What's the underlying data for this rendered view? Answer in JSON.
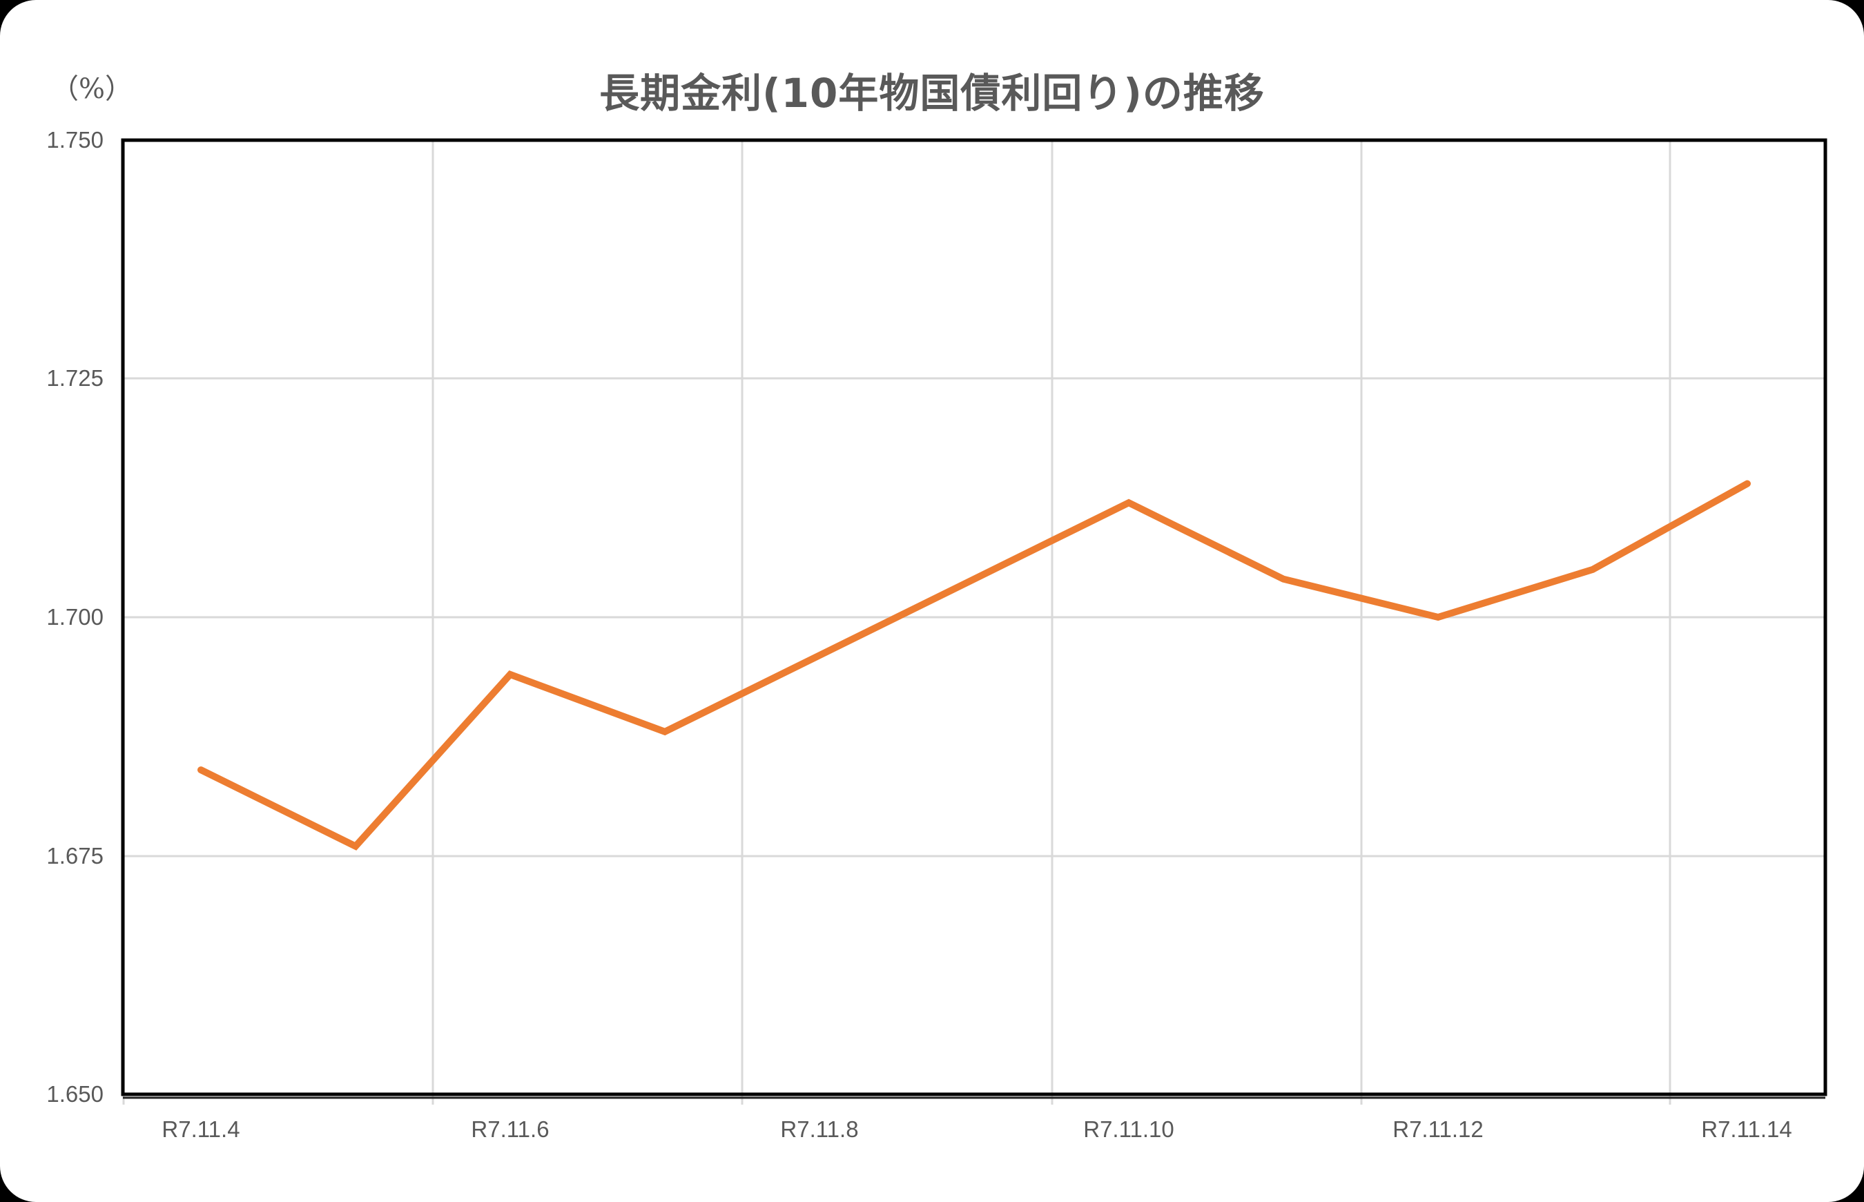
{
  "chart": {
    "title": "長期金利(10年物国債利回り)の推移",
    "unit_label": "（%）",
    "line_color": "#ED7D31",
    "y_ticks": [
      "1.750",
      "1.725",
      "1.700",
      "1.675",
      "1.650"
    ],
    "x_ticks": [
      "R7.11.4",
      "R7.11.6",
      "R7.11.8",
      "R7.11.10",
      "R7.11.12",
      "R7.11.14"
    ]
  },
  "chart_data": {
    "type": "line",
    "title": "長期金利(10年物国債利回り)の推移",
    "xlabel": "",
    "ylabel": "(%)",
    "ylim": [
      1.65,
      1.75
    ],
    "y_ticks": [
      1.65,
      1.675,
      1.7,
      1.725,
      1.75
    ],
    "x_tick_labels": [
      "R7.11.4",
      "R7.11.6",
      "R7.11.8",
      "R7.11.10",
      "R7.11.12",
      "R7.11.14"
    ],
    "grid": true,
    "legend": null,
    "x": [
      "R7.11.4",
      "R7.11.5",
      "R7.11.6",
      "R7.11.7",
      "R7.11.10",
      "R7.11.11",
      "R7.11.12",
      "R7.11.13",
      "R7.11.14"
    ],
    "series": [
      {
        "name": "長期金利(10年物国債利回り)",
        "color": "#ED7D31",
        "values": [
          1.684,
          1.676,
          1.694,
          1.688,
          1.712,
          1.704,
          1.7,
          1.705,
          1.714
        ]
      }
    ]
  }
}
